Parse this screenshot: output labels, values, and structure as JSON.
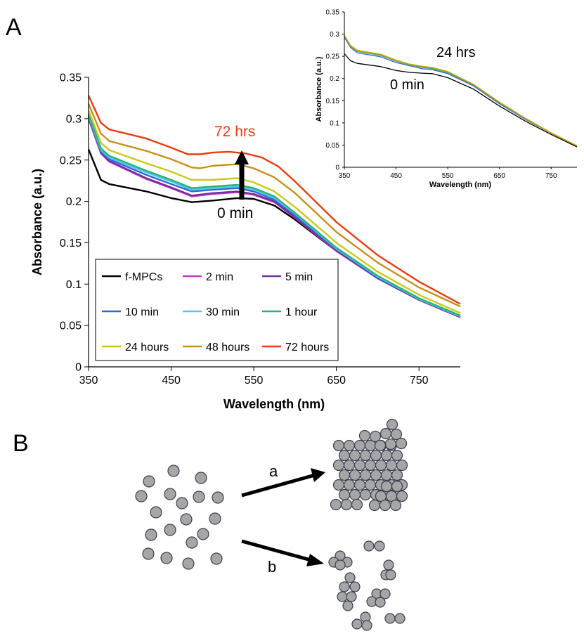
{
  "panel_labels": {
    "a": "A",
    "b": "B"
  },
  "chart_data": [
    {
      "type": "line",
      "xlabel": "Wavelength (nm)",
      "ylabel": "Absorbance (a.u.)",
      "xlim": [
        350,
        800
      ],
      "ylim": [
        0,
        0.35
      ],
      "xticks": [
        350,
        450,
        550,
        650,
        750
      ],
      "xtick_labels": [
        "350",
        "450",
        "550",
        "650",
        "750"
      ],
      "yticks": [
        0,
        0.05,
        0.1,
        0.15,
        0.2,
        0.25,
        0.3,
        0.35
      ],
      "ytick_labels": [
        "0",
        "0.05",
        "0.1",
        "0.15",
        "0.2",
        "0.25",
        "0.3",
        "0.35"
      ],
      "grid": false,
      "legend_position": "bottom-left",
      "annotations": {
        "top": "72 hrs",
        "bottom": "0 min",
        "arrow": "upward arrow from 0 min to 72 hrs"
      },
      "series": [
        {
          "name": "f-MPCs",
          "color": "#000000",
          "points": [
            [
              350,
              0.263
            ],
            [
              365,
              0.226
            ],
            [
              375,
              0.221
            ],
            [
              420,
              0.212
            ],
            [
              450,
              0.204
            ],
            [
              475,
              0.199
            ],
            [
              500,
              0.201
            ],
            [
              530,
              0.204
            ],
            [
              550,
              0.203
            ],
            [
              575,
              0.195
            ],
            [
              600,
              0.178
            ],
            [
              650,
              0.14
            ],
            [
              700,
              0.107
            ],
            [
              750,
              0.081
            ],
            [
              800,
              0.06
            ]
          ]
        },
        {
          "name": "2 min",
          "color": "#cc33cc",
          "points": [
            [
              350,
              0.3
            ],
            [
              365,
              0.258
            ],
            [
              375,
              0.248
            ],
            [
              420,
              0.227
            ],
            [
              450,
              0.216
            ],
            [
              475,
              0.206
            ],
            [
              500,
              0.209
            ],
            [
              530,
              0.211
            ],
            [
              550,
              0.208
            ],
            [
              575,
              0.199
            ],
            [
              600,
              0.18
            ],
            [
              650,
              0.14
            ],
            [
              700,
              0.107
            ],
            [
              750,
              0.081
            ],
            [
              800,
              0.06
            ]
          ]
        },
        {
          "name": "5 min",
          "color": "#7030a0",
          "points": [
            [
              350,
              0.302
            ],
            [
              365,
              0.259
            ],
            [
              375,
              0.249
            ],
            [
              420,
              0.228
            ],
            [
              450,
              0.217
            ],
            [
              475,
              0.207
            ],
            [
              500,
              0.21
            ],
            [
              530,
              0.212
            ],
            [
              550,
              0.209
            ],
            [
              575,
              0.2
            ],
            [
              600,
              0.181
            ],
            [
              650,
              0.141
            ],
            [
              700,
              0.107
            ],
            [
              750,
              0.081
            ],
            [
              800,
              0.06
            ]
          ]
        },
        {
          "name": "10 min",
          "color": "#3366dd",
          "points": [
            [
              350,
              0.303
            ],
            [
              365,
              0.26
            ],
            [
              375,
              0.251
            ],
            [
              420,
              0.232
            ],
            [
              450,
              0.221
            ],
            [
              475,
              0.212
            ],
            [
              500,
              0.214
            ],
            [
              530,
              0.216
            ],
            [
              550,
              0.212
            ],
            [
              575,
              0.202
            ],
            [
              600,
              0.183
            ],
            [
              650,
              0.142
            ],
            [
              700,
              0.108
            ],
            [
              750,
              0.082
            ],
            [
              800,
              0.061
            ]
          ]
        },
        {
          "name": "30 min",
          "color": "#55c8e8",
          "points": [
            [
              350,
              0.304
            ],
            [
              365,
              0.262
            ],
            [
              375,
              0.253
            ],
            [
              420,
              0.235
            ],
            [
              450,
              0.224
            ],
            [
              475,
              0.214
            ],
            [
              500,
              0.216
            ],
            [
              530,
              0.218
            ],
            [
              550,
              0.214
            ],
            [
              575,
              0.204
            ],
            [
              600,
              0.185
            ],
            [
              650,
              0.143
            ],
            [
              700,
              0.109
            ],
            [
              750,
              0.082
            ],
            [
              800,
              0.061
            ]
          ]
        },
        {
          "name": "1 hour",
          "color": "#22b573",
          "points": [
            [
              350,
              0.306
            ],
            [
              365,
              0.264
            ],
            [
              375,
              0.255
            ],
            [
              420,
              0.237
            ],
            [
              450,
              0.226
            ],
            [
              475,
              0.216
            ],
            [
              500,
              0.218
            ],
            [
              530,
              0.22
            ],
            [
              550,
              0.216
            ],
            [
              575,
              0.206
            ],
            [
              600,
              0.186
            ],
            [
              650,
              0.144
            ],
            [
              700,
              0.11
            ],
            [
              750,
              0.083
            ],
            [
              800,
              0.062
            ]
          ]
        },
        {
          "name": "24 hours",
          "color": "#c8c820",
          "points": [
            [
              350,
              0.31
            ],
            [
              365,
              0.271
            ],
            [
              375,
              0.262
            ],
            [
              420,
              0.246
            ],
            [
              450,
              0.236
            ],
            [
              475,
              0.226
            ],
            [
              500,
              0.226
            ],
            [
              530,
              0.228
            ],
            [
              550,
              0.223
            ],
            [
              575,
              0.212
            ],
            [
              600,
              0.193
            ],
            [
              650,
              0.15
            ],
            [
              700,
              0.115
            ],
            [
              750,
              0.087
            ],
            [
              800,
              0.065
            ]
          ]
        },
        {
          "name": "48 hours",
          "color": "#c8901a",
          "points": [
            [
              350,
              0.318
            ],
            [
              365,
              0.282
            ],
            [
              375,
              0.273
            ],
            [
              420,
              0.261
            ],
            [
              450,
              0.251
            ],
            [
              475,
              0.241
            ],
            [
              485,
              0.24
            ],
            [
              500,
              0.243
            ],
            [
              530,
              0.245
            ],
            [
              550,
              0.24
            ],
            [
              575,
              0.229
            ],
            [
              600,
              0.21
            ],
            [
              650,
              0.163
            ],
            [
              700,
              0.126
            ],
            [
              750,
              0.096
            ],
            [
              800,
              0.073
            ]
          ]
        },
        {
          "name": "72 hours",
          "color": "#ee3b0e",
          "points": [
            [
              350,
              0.328
            ],
            [
              365,
              0.295
            ],
            [
              375,
              0.287
            ],
            [
              420,
              0.276
            ],
            [
              450,
              0.265
            ],
            [
              470,
              0.257
            ],
            [
              485,
              0.257
            ],
            [
              500,
              0.259
            ],
            [
              520,
              0.26
            ],
            [
              540,
              0.258
            ],
            [
              560,
              0.253
            ],
            [
              580,
              0.242
            ],
            [
              600,
              0.224
            ],
            [
              650,
              0.175
            ],
            [
              700,
              0.135
            ],
            [
              750,
              0.103
            ],
            [
              800,
              0.076
            ]
          ]
        }
      ]
    },
    {
      "type": "line",
      "xlabel": "Wavelength (nm)",
      "ylabel": "Absorbance (a.u.)",
      "xlim": [
        350,
        800
      ],
      "ylim": [
        0,
        0.35
      ],
      "xticks": [
        350,
        450,
        550,
        650,
        750
      ],
      "xtick_labels": [
        "350",
        "450",
        "550",
        "650",
        "750"
      ],
      "yticks": [
        0,
        0.05,
        0.1,
        0.15,
        0.2,
        0.25,
        0.3,
        0.35
      ],
      "ytick_labels": [
        "0",
        "0.05",
        "0.1",
        "0.15",
        "0.2",
        "0.25",
        "0.3",
        "0.35"
      ],
      "grid": false,
      "annotations": {
        "top": "24 hrs",
        "bottom": "0 min"
      },
      "series": [
        {
          "color": "#000000",
          "points": [
            [
              350,
              0.256
            ],
            [
              362,
              0.24
            ],
            [
              375,
              0.234
            ],
            [
              420,
              0.227
            ],
            [
              450,
              0.218
            ],
            [
              475,
              0.214
            ],
            [
              500,
              0.212
            ],
            [
              520,
              0.211
            ],
            [
              550,
              0.202
            ],
            [
              600,
              0.176
            ],
            [
              650,
              0.138
            ],
            [
              700,
              0.104
            ],
            [
              750,
              0.074
            ],
            [
              800,
              0.046
            ]
          ]
        },
        {
          "color": "#3366dd",
          "points": [
            [
              350,
              0.293
            ],
            [
              362,
              0.27
            ],
            [
              375,
              0.258
            ],
            [
              420,
              0.249
            ],
            [
              450,
              0.236
            ],
            [
              475,
              0.229
            ],
            [
              500,
              0.222
            ],
            [
              520,
              0.22
            ],
            [
              550,
              0.211
            ],
            [
              600,
              0.183
            ],
            [
              650,
              0.143
            ],
            [
              700,
              0.108
            ],
            [
              750,
              0.077
            ],
            [
              800,
              0.048
            ]
          ]
        },
        {
          "color": "#22b573",
          "points": [
            [
              350,
              0.296
            ],
            [
              362,
              0.272
            ],
            [
              375,
              0.261
            ],
            [
              420,
              0.252
            ],
            [
              450,
              0.239
            ],
            [
              475,
              0.231
            ],
            [
              500,
              0.225
            ],
            [
              520,
              0.222
            ],
            [
              550,
              0.213
            ],
            [
              600,
              0.185
            ],
            [
              650,
              0.145
            ],
            [
              700,
              0.109
            ],
            [
              750,
              0.077
            ],
            [
              800,
              0.048
            ]
          ]
        },
        {
          "color": "#c8c820",
          "points": [
            [
              350,
              0.298
            ],
            [
              362,
              0.275
            ],
            [
              375,
              0.264
            ],
            [
              420,
              0.255
            ],
            [
              450,
              0.242
            ],
            [
              475,
              0.233
            ],
            [
              500,
              0.228
            ],
            [
              520,
              0.225
            ],
            [
              550,
              0.216
            ],
            [
              600,
              0.187
            ],
            [
              650,
              0.147
            ],
            [
              700,
              0.111
            ],
            [
              750,
              0.078
            ],
            [
              800,
              0.049
            ]
          ]
        },
        {
          "color": "#c8901a",
          "points": [
            [
              350,
              0.296
            ],
            [
              362,
              0.273
            ],
            [
              375,
              0.262
            ],
            [
              420,
              0.254
            ],
            [
              450,
              0.24
            ],
            [
              475,
              0.232
            ],
            [
              500,
              0.227
            ],
            [
              520,
              0.224
            ],
            [
              550,
              0.215
            ],
            [
              600,
              0.186
            ],
            [
              650,
              0.146
            ],
            [
              700,
              0.11
            ],
            [
              750,
              0.077
            ],
            [
              800,
              0.048
            ]
          ]
        }
      ]
    }
  ],
  "schematic": {
    "arrow_a_label": "a",
    "arrow_b_label": "b",
    "particle_fill": "#a6a6a6",
    "particle_stroke": "#3a3f52"
  }
}
